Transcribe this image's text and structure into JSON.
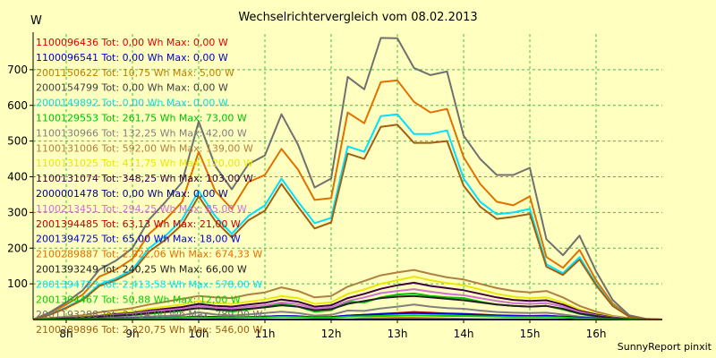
{
  "chart_data": {
    "type": "line",
    "title": "Wechselrichtervergleich vom 08.02.2013",
    "ylabel": "W",
    "xlabel": "",
    "ylim": [
      0,
      800
    ],
    "yticks": [
      100,
      200,
      300,
      400,
      500,
      600,
      700
    ],
    "xlim": [
      7.5,
      17.0
    ],
    "xticks": [
      8,
      9,
      10,
      11,
      12,
      13,
      14,
      15,
      16
    ],
    "xtick_labels": [
      "8h",
      "9h",
      "10h",
      "11h",
      "12h",
      "13h",
      "14h",
      "15h",
      "16h"
    ],
    "grid": true,
    "legend_position": "left, overlaid on plot",
    "credit": "SunnyReport pinxit",
    "x": [
      7.5,
      7.75,
      8.0,
      8.25,
      8.5,
      8.75,
      9.0,
      9.25,
      9.5,
      9.75,
      10.0,
      10.25,
      10.5,
      10.75,
      11.0,
      11.25,
      11.5,
      11.75,
      12.0,
      12.25,
      12.5,
      12.75,
      13.0,
      13.25,
      13.5,
      13.75,
      14.0,
      14.25,
      14.5,
      14.75,
      15.0,
      15.25,
      15.5,
      15.75,
      16.0,
      16.25,
      16.5,
      16.75,
      17.0
    ],
    "series": [
      {
        "name": "1100096436 Tot: 0,00 Wh Max: 0,00 W",
        "color": "#e00000",
        "values": [
          0,
          0,
          0,
          0,
          0,
          0,
          0,
          0,
          0,
          0,
          0,
          0,
          0,
          0,
          0,
          0,
          0,
          0,
          0,
          0,
          0,
          0,
          0,
          0,
          0,
          0,
          0,
          0,
          0,
          0,
          0,
          0,
          0,
          0,
          0,
          0,
          0,
          0,
          0
        ]
      },
      {
        "name": "1100096541 Tot: 0,00 Wh Max: 0,00 W",
        "color": "#0000c0",
        "values": [
          0,
          0,
          0,
          0,
          0,
          0,
          0,
          0,
          0,
          0,
          0,
          0,
          0,
          0,
          0,
          0,
          0,
          0,
          0,
          0,
          0,
          0,
          0,
          0,
          0,
          0,
          0,
          0,
          0,
          0,
          0,
          0,
          0,
          0,
          0,
          0,
          0,
          0,
          0
        ]
      },
      {
        "name": "2001150622 Tot: 10,75 Wh Max: 5,00 W",
        "color": "#c08000",
        "values": [
          0,
          0,
          0,
          0,
          0,
          0,
          0,
          0,
          0,
          0,
          0,
          0,
          0,
          0,
          0,
          0,
          0,
          0,
          0,
          0,
          3,
          4,
          5,
          5,
          4,
          3,
          2,
          1,
          0,
          0,
          0,
          0,
          0,
          0,
          0,
          0,
          0,
          0,
          0
        ]
      },
      {
        "name": "2000154799 Tot: 0,00 Wh Max: 0,00 W",
        "color": "#404040",
        "values": [
          0,
          0,
          0,
          0,
          0,
          0,
          0,
          0,
          0,
          0,
          0,
          0,
          0,
          0,
          0,
          0,
          0,
          0,
          0,
          0,
          0,
          0,
          0,
          0,
          0,
          0,
          0,
          0,
          0,
          0,
          0,
          0,
          0,
          0,
          0,
          0,
          0,
          0,
          0
        ]
      },
      {
        "name": "2000149892 Tot: 0,00 Wh Max: 0,00 W",
        "color": "#00e0e0",
        "values": [
          0,
          0,
          0,
          0,
          0,
          0,
          0,
          0,
          0,
          0,
          0,
          0,
          0,
          0,
          0,
          0,
          0,
          0,
          0,
          0,
          0,
          0,
          0,
          0,
          0,
          0,
          0,
          0,
          0,
          0,
          0,
          0,
          0,
          0,
          0,
          0,
          0,
          0,
          0
        ]
      },
      {
        "name": "1100129553 Tot: 261,75 Wh Max: 73,00 W",
        "color": "#00c000",
        "values": [
          0,
          0,
          2,
          4,
          8,
          10,
          12,
          16,
          20,
          24,
          40,
          28,
          22,
          28,
          35,
          44,
          36,
          22,
          26,
          50,
          48,
          62,
          70,
          73,
          66,
          62,
          60,
          50,
          42,
          38,
          36,
          38,
          28,
          16,
          8,
          4,
          2,
          0,
          0
        ]
      },
      {
        "name": "1100130966 Tot: 132,25 Wh Max: 42,00 W",
        "color": "#808080",
        "values": [
          0,
          0,
          1,
          2,
          4,
          5,
          6,
          8,
          10,
          12,
          20,
          14,
          11,
          14,
          18,
          22,
          18,
          11,
          13,
          25,
          24,
          31,
          36,
          42,
          36,
          32,
          30,
          25,
          21,
          19,
          18,
          19,
          14,
          8,
          4,
          2,
          1,
          0,
          0
        ]
      },
      {
        "name": "1100131006 Tot: 592,00 Wh Max: 139,00 W",
        "color": "#b08040",
        "values": [
          0,
          4,
          8,
          12,
          20,
          26,
          32,
          42,
          50,
          58,
          66,
          62,
          60,
          70,
          76,
          90,
          80,
          62,
          66,
          92,
          108,
          124,
          132,
          139,
          128,
          118,
          112,
          100,
          88,
          80,
          76,
          80,
          62,
          38,
          22,
          10,
          4,
          1,
          0
        ]
      },
      {
        "name": "1100131025 Tot: 411,75 Wh Max: 120,00 W",
        "color": "#e8e800",
        "values": [
          0,
          2,
          4,
          8,
          12,
          18,
          22,
          30,
          36,
          42,
          52,
          46,
          44,
          50,
          56,
          66,
          60,
          44,
          48,
          72,
          84,
          100,
          110,
          120,
          110,
          102,
          96,
          84,
          72,
          64,
          60,
          62,
          48,
          28,
          16,
          8,
          2,
          0,
          0
        ]
      },
      {
        "name": "1100131074 Tot: 348,25 Wh Max: 103,00 W",
        "color": "#400040",
        "values": [
          0,
          2,
          4,
          7,
          10,
          15,
          18,
          25,
          30,
          35,
          44,
          38,
          36,
          42,
          47,
          56,
          50,
          36,
          40,
          60,
          72,
          86,
          96,
          103,
          94,
          88,
          82,
          72,
          62,
          55,
          52,
          54,
          42,
          24,
          14,
          6,
          2,
          0,
          0
        ]
      },
      {
        "name": "2000001478 Tot: 0,00 Wh Max: 0,00 W",
        "color": "#000080",
        "values": [
          0,
          0,
          0,
          0,
          0,
          0,
          0,
          0,
          0,
          0,
          0,
          0,
          0,
          0,
          0,
          0,
          0,
          0,
          0,
          0,
          0,
          0,
          0,
          0,
          0,
          0,
          0,
          0,
          0,
          0,
          0,
          0,
          0,
          0,
          0,
          0,
          0,
          0,
          0
        ]
      },
      {
        "name": "1100213451 Tot: 294,25 Wh Max: 85,00 W",
        "color": "#d070d0",
        "values": [
          0,
          2,
          4,
          6,
          9,
          13,
          16,
          22,
          26,
          30,
          38,
          33,
          31,
          36,
          40,
          48,
          43,
          31,
          34,
          52,
          62,
          74,
          80,
          85,
          78,
          72,
          68,
          60,
          52,
          46,
          44,
          46,
          36,
          21,
          12,
          5,
          2,
          0,
          0
        ]
      },
      {
        "name": "2001394485 Tot: 63,13 Wh Max: 21,00 W",
        "color": "#c00000",
        "values": [
          0,
          0,
          1,
          1,
          2,
          3,
          3,
          4,
          5,
          6,
          8,
          7,
          6,
          7,
          8,
          10,
          9,
          6,
          7,
          11,
          13,
          16,
          18,
          21,
          19,
          17,
          16,
          14,
          12,
          11,
          10,
          11,
          8,
          5,
          3,
          1,
          0,
          0,
          0
        ]
      },
      {
        "name": "2001394725 Tot: 65,00 Wh Max: 18,00 W",
        "color": "#0000e0",
        "values": [
          0,
          0,
          1,
          1,
          2,
          3,
          3,
          4,
          5,
          6,
          8,
          7,
          6,
          7,
          8,
          10,
          9,
          6,
          7,
          11,
          13,
          15,
          17,
          18,
          17,
          16,
          15,
          13,
          11,
          10,
          9,
          10,
          8,
          5,
          3,
          1,
          0,
          0,
          0
        ]
      },
      {
        "name": "2100289887 Tot: 2.922,06 Wh Max: 674,33 W",
        "color": "#e07000",
        "values": [
          0,
          18,
          42,
          70,
          120,
          140,
          170,
          240,
          280,
          330,
          470,
          360,
          310,
          385,
          405,
          478,
          420,
          335,
          340,
          580,
          550,
          665,
          670,
          610,
          580,
          590,
          455,
          380,
          330,
          320,
          345,
          175,
          145,
          195,
          110,
          45,
          10,
          2,
          0
        ]
      },
      {
        "name": "2001393249 Tot: 240,25 Wh Max: 66,00 W",
        "color": "#202020",
        "values": [
          0,
          1,
          3,
          5,
          8,
          11,
          13,
          18,
          22,
          26,
          32,
          28,
          26,
          30,
          34,
          40,
          36,
          26,
          29,
          44,
          52,
          60,
          64,
          66,
          62,
          58,
          54,
          48,
          42,
          38,
          36,
          38,
          30,
          17,
          10,
          4,
          1,
          0,
          0
        ]
      },
      {
        "name": "2001394723 Tot: 2.413,58 Wh Max: 578,00 W",
        "color": "#00e0ff",
        "values": [
          0,
          14,
          34,
          58,
          98,
          115,
          140,
          200,
          235,
          280,
          360,
          290,
          240,
          290,
          320,
          395,
          330,
          270,
          285,
          485,
          470,
          570,
          575,
          520,
          520,
          530,
          395,
          330,
          295,
          300,
          310,
          155,
          130,
          175,
          100,
          40,
          8,
          1,
          0
        ]
      },
      {
        "name": "2001394467 Tot: 50,88 Wh Max: 12,00 W",
        "color": "#00d000",
        "values": [
          0,
          0,
          0,
          1,
          1,
          2,
          2,
          3,
          4,
          5,
          6,
          5,
          5,
          6,
          6,
          8,
          7,
          5,
          5,
          8,
          9,
          10,
          11,
          12,
          11,
          10,
          10,
          9,
          8,
          7,
          7,
          7,
          6,
          3,
          2,
          1,
          0,
          0,
          0
        ]
      },
      {
        "name": "2001193288 Tot: 3.414,00 Wh Max: 789,00 W",
        "color": "#707070",
        "values": [
          0,
          20,
          48,
          82,
          140,
          165,
          200,
          280,
          330,
          385,
          555,
          430,
          365,
          435,
          460,
          575,
          490,
          370,
          395,
          680,
          645,
          789,
          788,
          705,
          685,
          695,
          515,
          450,
          405,
          405,
          425,
          225,
          180,
          235,
          135,
          55,
          12,
          2,
          0
        ]
      },
      {
        "name": "2100289896 Tot: 2.320,75 Wh Max: 546,00 W",
        "color": "#a06010",
        "values": [
          0,
          13,
          32,
          55,
          94,
          110,
          134,
          190,
          224,
          266,
          345,
          276,
          230,
          278,
          305,
          380,
          316,
          255,
          272,
          465,
          450,
          540,
          546,
          495,
          495,
          500,
          375,
          316,
          282,
          288,
          296,
          148,
          125,
          168,
          96,
          38,
          8,
          1,
          0
        ]
      }
    ]
  }
}
